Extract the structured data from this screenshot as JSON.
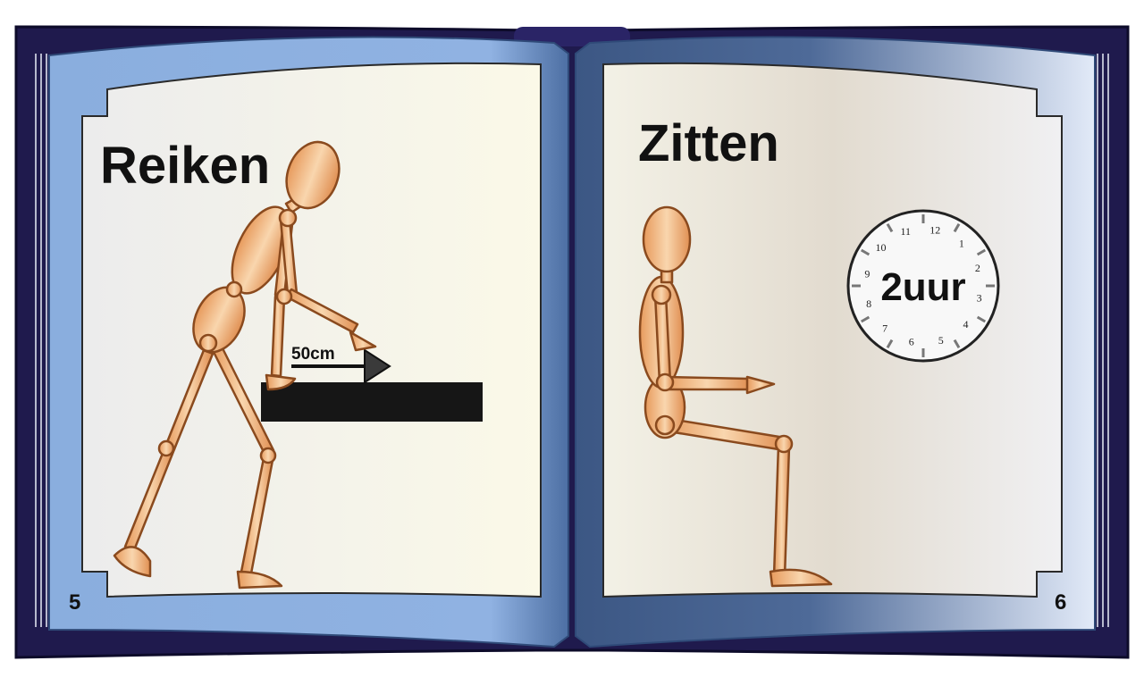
{
  "left_page": {
    "title": "Reiken",
    "page_number": "5",
    "distance_label": "50cm"
  },
  "right_page": {
    "title": "Zitten",
    "page_number": "6",
    "duration_label": "2uur"
  },
  "clock": {
    "numbers": [
      "12",
      "1",
      "2",
      "3",
      "4",
      "5",
      "6",
      "7",
      "8",
      "9",
      "10",
      "11"
    ]
  },
  "colors": {
    "cover": "#1f1a4d",
    "page_border": "#8caee0",
    "page_border_dark": "#3e5a86",
    "paper": "#f7f5ea",
    "mannequin": "#e9a36a",
    "mannequin_outline": "#8a4a1e",
    "table": "#161616"
  }
}
